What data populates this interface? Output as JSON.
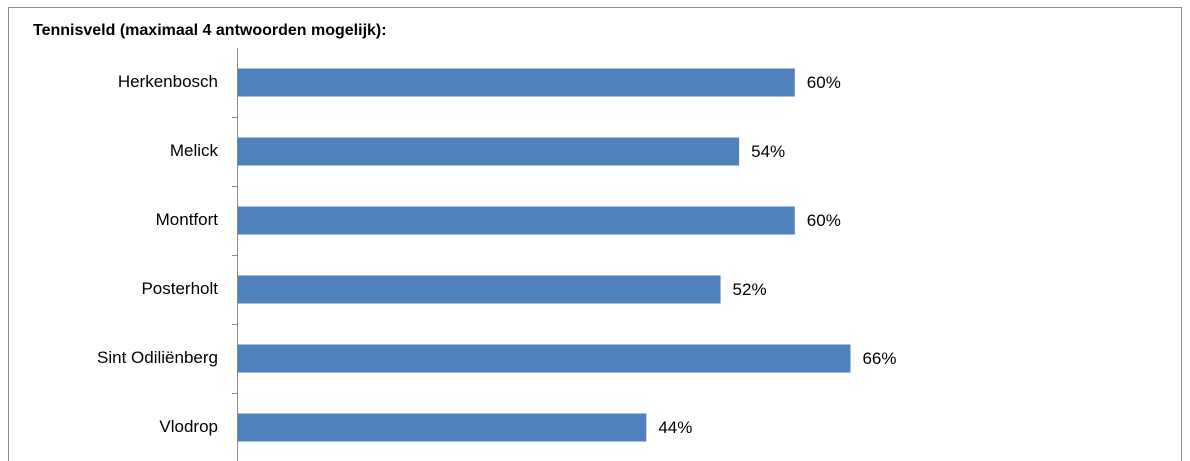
{
  "chart_data": {
    "type": "bar",
    "orientation": "horizontal",
    "title": "Tennisveld (maximaal 4 antwoorden mogelijk):",
    "categories": [
      "Herkenbosch",
      "Melick",
      "Montfort",
      "Posterholt",
      "Sint Odiliënberg",
      "Vlodrop"
    ],
    "values": [
      60,
      54,
      60,
      52,
      66,
      44
    ],
    "value_labels": [
      "60%",
      "54%",
      "60%",
      "52%",
      "66%",
      "44%"
    ],
    "color": "#4f81bd",
    "xlim": [
      0,
      100
    ]
  }
}
